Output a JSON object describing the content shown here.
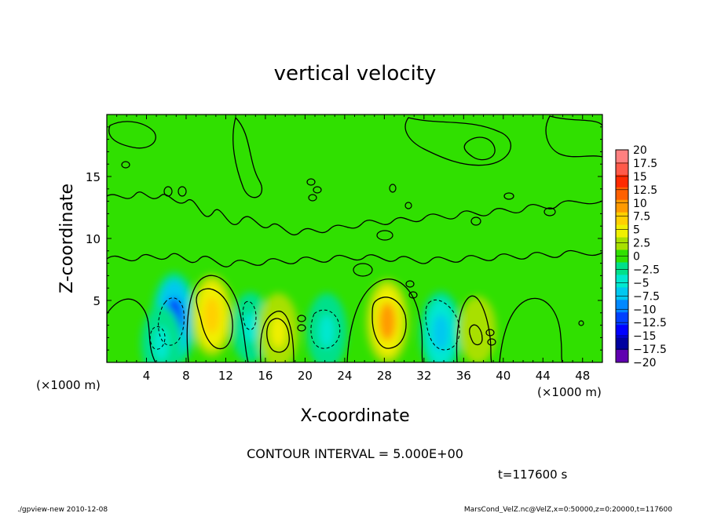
{
  "chart_data": {
    "type": "heatmap",
    "title": "vertical velocity",
    "xlabel": "X-coordinate",
    "ylabel": "Z-coordinate",
    "x_unit_left": "(×1000 m)",
    "x_unit_right": "(×1000 m)",
    "xlim": [
      0,
      50
    ],
    "ylim": [
      0,
      20
    ],
    "x_ticks": [
      "4",
      "8",
      "12",
      "16",
      "20",
      "24",
      "28",
      "32",
      "36",
      "40",
      "44",
      "48"
    ],
    "y_ticks": [
      "5",
      "10",
      "15"
    ],
    "colorbar": {
      "labels": [
        "20",
        "17.5",
        "15",
        "12.5",
        "10",
        "7.5",
        "5",
        "2.5",
        "0",
        "−2.5",
        "−5",
        "−7.5",
        "−10",
        "−12.5",
        "−15",
        "−17.5",
        "−20"
      ],
      "colors": [
        "#ff8080",
        "#ff5a4a",
        "#ff2a00",
        "#ff6000",
        "#ff9a00",
        "#ffd000",
        "#f0f000",
        "#a8e000",
        "#30e000",
        "#00e08a",
        "#00e8d0",
        "#00c8f0",
        "#0088ff",
        "#0040ff",
        "#0000ff",
        "#0000a0",
        "#6000b0"
      ]
    },
    "contour_interval": "CONTOUR INTERVAL = 5.000E+00",
    "features": [
      {
        "x": 6.8,
        "z": 3.5,
        "value": -12,
        "kind": "downdraft"
      },
      {
        "x": 10.6,
        "z": 3.8,
        "value": 8,
        "kind": "updraft"
      },
      {
        "x": 14.5,
        "z": 2.8,
        "value": -4,
        "kind": "downdraft"
      },
      {
        "x": 17.3,
        "z": 2.5,
        "value": 6,
        "kind": "updraft"
      },
      {
        "x": 22.2,
        "z": 2.5,
        "value": -6,
        "kind": "downdraft"
      },
      {
        "x": 28.3,
        "z": 3.3,
        "value": 9,
        "kind": "updraft"
      },
      {
        "x": 33.7,
        "z": 2.4,
        "value": -8,
        "kind": "downdraft"
      },
      {
        "x": 37.4,
        "z": 2.6,
        "value": 3,
        "kind": "updraft"
      },
      {
        "x": 5.5,
        "z": 1.5,
        "value": -6,
        "kind": "downdraft"
      }
    ]
  },
  "time_label": "t=117600 s",
  "footer_left": "./gpview-new   2010-12-08",
  "footer_right": "MarsCond_VelZ.nc@VelZ,x=0:50000,z=0:20000,t=117600"
}
